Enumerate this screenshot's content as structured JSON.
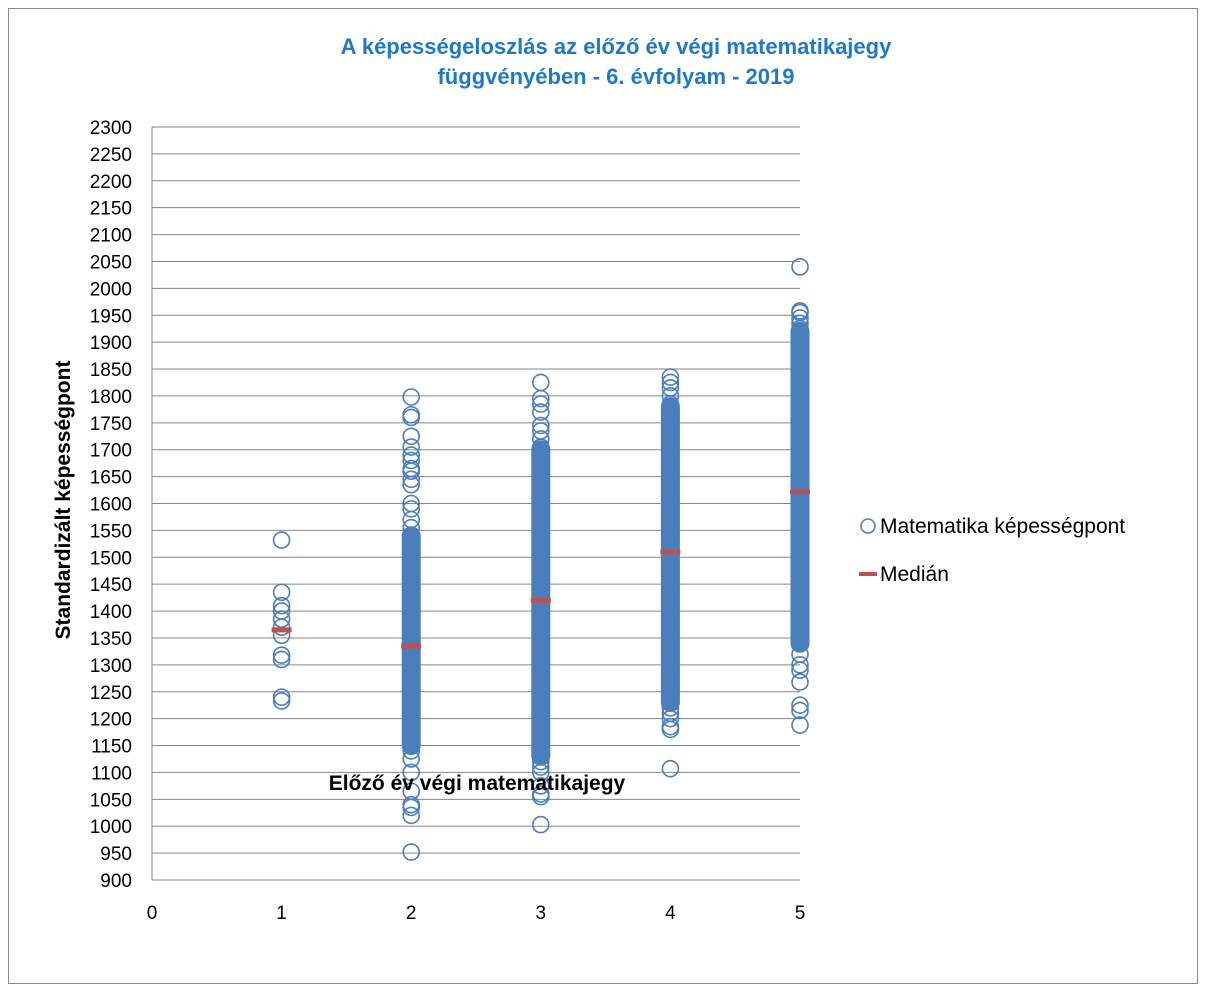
{
  "chart_data": {
    "type": "scatter",
    "title_line1": "A képességeloszlás az előző év végi matematikajegy",
    "title_line2": "függvényében - 6. évfolyam - 2019",
    "xlabel": "Előző év végi matematikajegy",
    "ylabel": "Standardizált képességpont",
    "xlim": [
      0,
      5
    ],
    "ylim": [
      900,
      2300
    ],
    "x_ticks": [
      "0",
      "1",
      "2",
      "3",
      "4",
      "5"
    ],
    "y_ticks": [
      "900",
      "950",
      "1000",
      "1050",
      "1100",
      "1150",
      "1200",
      "1250",
      "1300",
      "1350",
      "1400",
      "1450",
      "1500",
      "1550",
      "1600",
      "1650",
      "1700",
      "1750",
      "1800",
      "1850",
      "1900",
      "1950",
      "2000",
      "2050",
      "2100",
      "2150",
      "2200",
      "2250",
      "2300"
    ],
    "grid": "horizontal",
    "legend_position": "right",
    "colors": {
      "points": "#4a7ebb",
      "median": "#c0504d",
      "title": "#1f78c8"
    },
    "series": [
      {
        "name": "Matematika képességpont",
        "marker": "circle-open",
        "groups": [
          {
            "x": 1,
            "outliers": [
              1532,
              1435,
              1410,
              1400,
              1385,
              1370,
              1355,
              1318,
              1310,
              1240,
              1233
            ],
            "dense_range": null
          },
          {
            "x": 2,
            "outliers": [
              1798,
              1765,
              1760,
              1725,
              1705,
              1690,
              1680,
              1665,
              1660,
              1645,
              1635,
              1600,
              1590,
              1570,
              1555,
              1140,
              1125,
              1100,
              1065,
              1040,
              1035,
              1020,
              952
            ],
            "dense_range": [
              1150,
              1540
            ]
          },
          {
            "x": 3,
            "outliers": [
              1825,
              1795,
              1785,
              1770,
              1745,
              1735,
              1720,
              1705,
              1120,
              1110,
              1100,
              1075,
              1060,
              1055,
              1003
            ],
            "dense_range": [
              1130,
              1700
            ]
          },
          {
            "x": 4,
            "outliers": [
              1835,
              1825,
              1815,
              1800,
              1785,
              1220,
              1210,
              1200,
              1185,
              1180,
              1107
            ],
            "dense_range": [
              1230,
              1780
            ]
          },
          {
            "x": 5,
            "outliers": [
              2040,
              1958,
              1955,
              1945,
              1935,
              1925,
              1320,
              1300,
              1290,
              1268,
              1225,
              1215,
              1188
            ],
            "dense_range": [
              1340,
              1920
            ]
          }
        ]
      },
      {
        "name": "Medián",
        "marker": "dash",
        "points": [
          {
            "x": 1,
            "y": 1365
          },
          {
            "x": 2,
            "y": 1335
          },
          {
            "x": 3,
            "y": 1420
          },
          {
            "x": 4,
            "y": 1510
          },
          {
            "x": 5,
            "y": 1622
          }
        ]
      }
    ]
  }
}
